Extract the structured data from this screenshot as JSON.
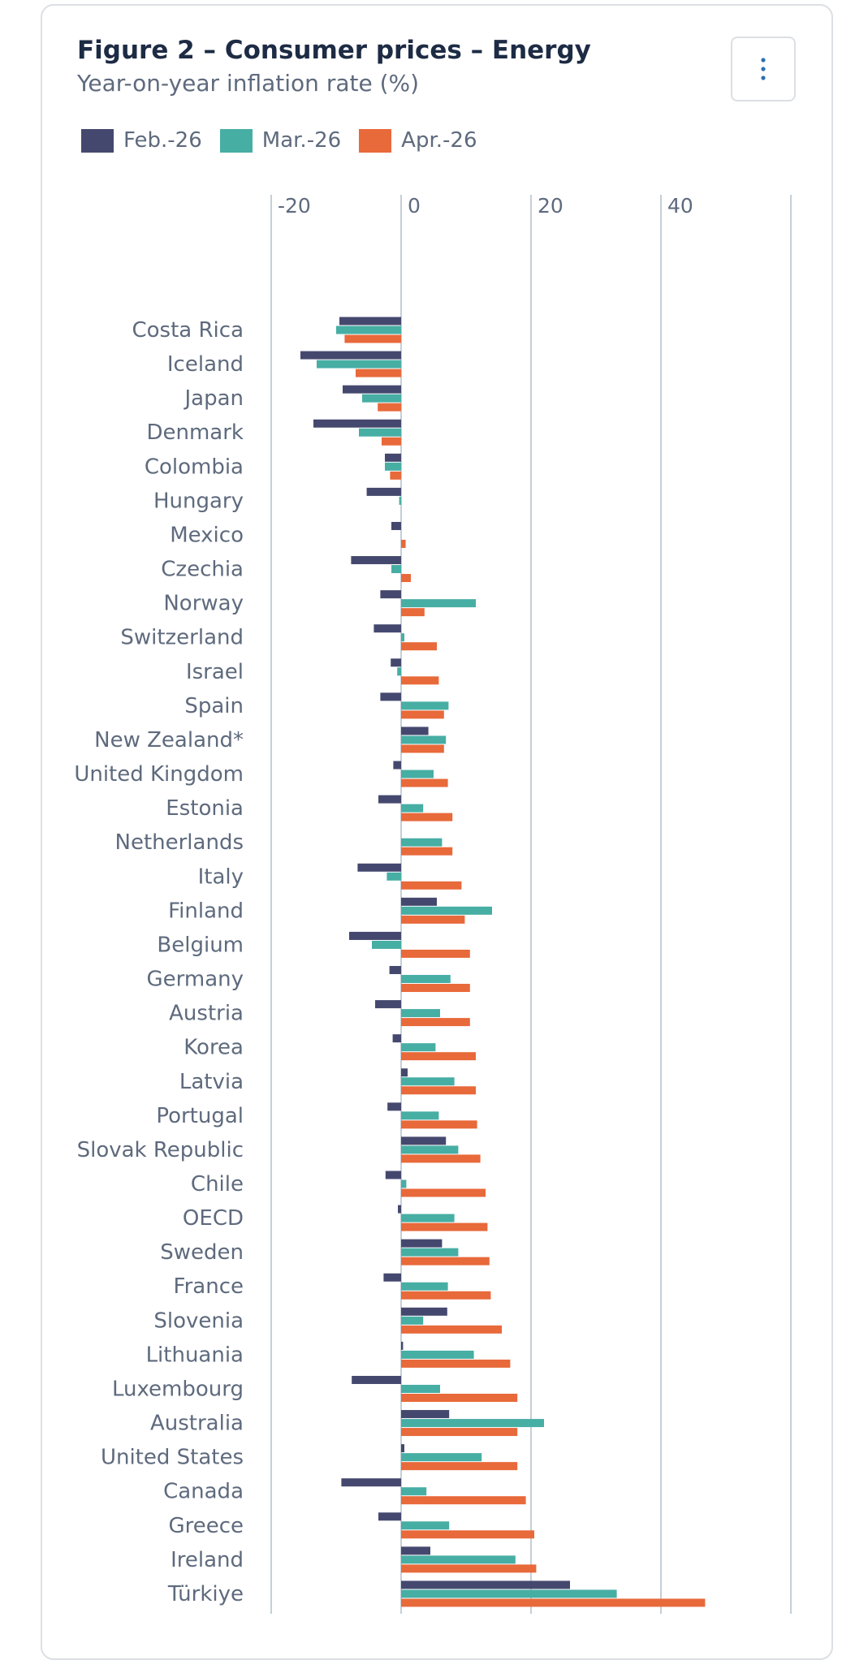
{
  "header": {
    "title": "Figure 2 – Consumer prices – Energy",
    "subtitle": "Year-on-year inflation rate (%)"
  },
  "menu": {
    "icon": "vertical-ellipsis-icon",
    "glyph": "⋮"
  },
  "colors": {
    "feb": "#45486e",
    "mar": "#47aea4",
    "apr": "#e8693a",
    "grid": "#c5cfd6",
    "text": "#5e6a7d"
  },
  "chart_data": {
    "type": "bar",
    "orientation": "horizontal",
    "title": "Figure 2 – Consumer prices – Energy",
    "subtitle": "Year-on-year inflation rate (%)",
    "xlim": [
      -20,
      60
    ],
    "x_ticks": [
      "-20",
      "0",
      "20",
      "40"
    ],
    "legend_position": "top-left",
    "grid": true,
    "categories": [
      "Costa Rica",
      "Iceland",
      "Japan",
      "Denmark",
      "Colombia",
      "Hungary",
      "Mexico",
      "Czechia",
      "Norway",
      "Switzerland",
      "Israel",
      "Spain",
      "New Zealand*",
      "United Kingdom",
      "Estonia",
      "Netherlands",
      "Italy",
      "Finland",
      "Belgium",
      "Germany",
      "Austria",
      "Korea",
      "Latvia",
      "Portugal",
      "Slovak Republic",
      "Chile",
      "OECD",
      "Sweden",
      "France",
      "Slovenia",
      "Lithuania",
      "Luxembourg",
      "Australia",
      "United States",
      "Canada",
      "Greece",
      "Ireland",
      "Türkiye"
    ],
    "series": [
      {
        "name": "Feb.-26",
        "color": "#45486e",
        "values": [
          -9.5,
          -15.5,
          -9,
          -13.5,
          -2.5,
          -5.3,
          -1.5,
          -7.7,
          -3.2,
          -4.2,
          -1.6,
          -3.2,
          4.2,
          -1.2,
          -3.5,
          0,
          -6.7,
          5.5,
          -8,
          -1.8,
          -4,
          -1.3,
          1,
          -2.1,
          6.9,
          -2.4,
          -0.5,
          6.3,
          -2.7,
          7.1,
          0.3,
          -7.6,
          7.4,
          0.5,
          -9.2,
          -3.5,
          4.5,
          26
        ]
      },
      {
        "name": "Mar.-26",
        "color": "#47aea4",
        "values": [
          -10,
          -13,
          -6,
          -6.5,
          -2.5,
          -0.3,
          0,
          -1.5,
          11.5,
          0.5,
          -0.6,
          7.3,
          6.9,
          5,
          3.4,
          6.3,
          -2.2,
          14,
          -4.5,
          7.6,
          6,
          5.3,
          8.2,
          5.8,
          8.8,
          0.8,
          8.2,
          8.8,
          7.2,
          3.4,
          11.2,
          6,
          22,
          12.4,
          3.9,
          7.4,
          17.6,
          33.2
        ]
      },
      {
        "name": "Apr.-26",
        "color": "#e8693a",
        "values": [
          -8.7,
          -7,
          -3.6,
          -3,
          -1.7,
          0,
          0.7,
          1.5,
          3.6,
          5.5,
          5.8,
          6.6,
          6.6,
          7.2,
          7.9,
          7.9,
          9.3,
          9.8,
          10.6,
          10.6,
          10.6,
          11.5,
          11.5,
          11.7,
          12.2,
          13,
          13.3,
          13.6,
          13.8,
          15.5,
          16.8,
          17.9,
          17.9,
          17.9,
          19.2,
          20.5,
          20.8,
          46.8
        ]
      }
    ]
  }
}
